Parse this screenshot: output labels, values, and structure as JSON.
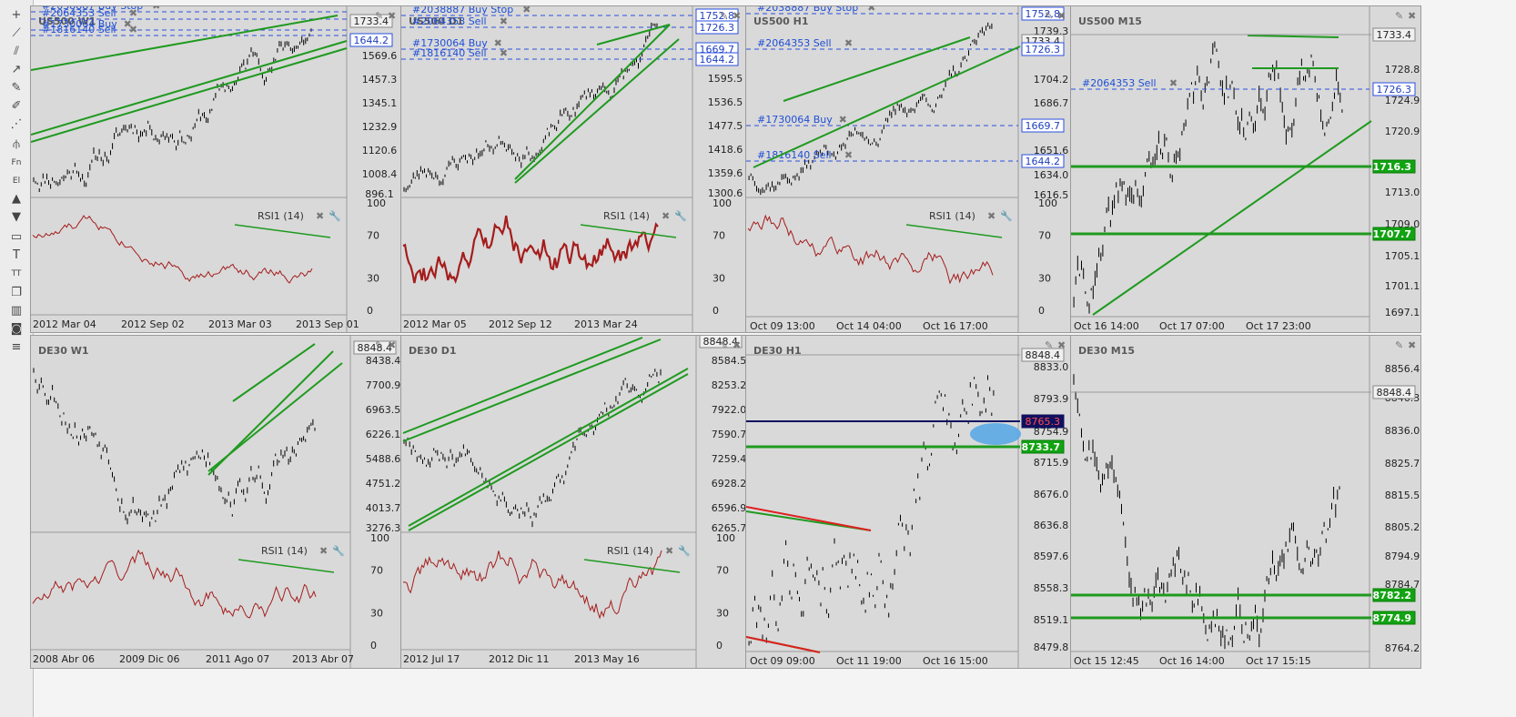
{
  "toolbar": {
    "icons": [
      {
        "name": "crosshair-icon",
        "glyph": "+"
      },
      {
        "name": "trendline-icon",
        "glyph": "⟋"
      },
      {
        "name": "channel-icon",
        "glyph": "⫽"
      },
      {
        "name": "ray-icon",
        "glyph": "↗"
      },
      {
        "name": "pencil-icon",
        "glyph": "✎"
      },
      {
        "name": "brush-icon",
        "glyph": "✐"
      },
      {
        "name": "fibonacci-icon",
        "glyph": "⋰"
      },
      {
        "name": "pitchfork-icon",
        "glyph": "⫛"
      },
      {
        "name": "fibonacci-fan-icon",
        "glyph": "Fn"
      },
      {
        "name": "elliott-icon",
        "glyph": "El"
      },
      {
        "name": "arrow-up-icon",
        "glyph": "▲"
      },
      {
        "name": "arrow-down-icon",
        "glyph": "▼"
      },
      {
        "name": "rectangle-icon",
        "glyph": "▭"
      },
      {
        "name": "text-icon",
        "glyph": "T"
      },
      {
        "name": "text-size-icon",
        "glyph": "TT"
      },
      {
        "name": "layers-icon",
        "glyph": "❐"
      },
      {
        "name": "bars-icon",
        "glyph": "▥"
      },
      {
        "name": "camera-icon",
        "glyph": "◙"
      },
      {
        "name": "menu-icon",
        "glyph": "≡"
      }
    ]
  },
  "colors": {
    "panel_bg": "#d9d9d9",
    "price": "#000000",
    "rsi": "#a51c1c",
    "trend": "#1f9a1f",
    "order": "#2a4fe0"
  },
  "panels": [
    {
      "id": "us500-w1",
      "title": "US500 W1",
      "symbol": "US500",
      "timeframe": "W1",
      "price_axis": [
        "1733.4",
        "1644.2",
        "1569.6",
        "1457.3",
        "1345.1",
        "1232.9",
        "1120.6",
        "1008.4",
        "896.1"
      ],
      "highlight_labels": [
        {
          "text": "1733.4",
          "style": "gray"
        },
        {
          "text": "1644.2",
          "style": "blue"
        }
      ],
      "orders": [
        "#2038887 Buy Stop",
        "#2064353 Sell",
        "#1730064 Buy",
        "#1816140 Sell"
      ],
      "rsi": {
        "label": "RSI1 (14)",
        "levels": [
          "100",
          "70",
          "30",
          "0"
        ]
      },
      "dates": [
        "2012 Mar 04",
        "2012 Sep 02",
        "2013 Mar 03",
        "2013 Sep 01"
      ]
    },
    {
      "id": "us500-d1",
      "title": "US500 D1",
      "symbol": "US500",
      "timeframe": "D1",
      "price_axis": [
        "1752.8",
        "1726.3",
        "1669.7",
        "1644.2",
        "1595.5",
        "1536.5",
        "1477.5",
        "1418.6",
        "1359.6",
        "1300.6"
      ],
      "highlight_labels": [
        {
          "text": "1752.8",
          "style": "blue"
        },
        {
          "text": "1726.3",
          "style": "blue"
        },
        {
          "text": "1669.7",
          "style": "blue"
        },
        {
          "text": "1644.2",
          "style": "blue"
        }
      ],
      "orders": [
        "#2038887 Buy Stop",
        "#2064353 Sell",
        "#1730064 Buy",
        "#1816140 Sell"
      ],
      "rsi": {
        "label": "RSI1 (14)",
        "levels": [
          "100",
          "70",
          "30",
          "0"
        ]
      },
      "dates": [
        "2012 Mar 05",
        "2012 Sep 12",
        "2013 Mar 24"
      ]
    },
    {
      "id": "us500-h1",
      "title": "US500 H1",
      "symbol": "US500",
      "timeframe": "H1",
      "price_axis": [
        "1752.8",
        "1739.3",
        "1733.4",
        "1726.3",
        "1704.2",
        "1686.7",
        "1669.7",
        "1651.6",
        "1644.2",
        "1634.0",
        "1616.5"
      ],
      "highlight_labels": [
        {
          "text": "1752.8",
          "style": "blue"
        },
        {
          "text": "1733.4",
          "style": "gray"
        },
        {
          "text": "1726.3",
          "style": "blue"
        },
        {
          "text": "1669.7",
          "style": "blue"
        },
        {
          "text": "1644.2",
          "style": "blue"
        }
      ],
      "orders": [
        "#2038887 Buy Stop",
        "#2064353 Sell",
        "#1730064 Buy",
        "#1816140 Sell"
      ],
      "rsi": {
        "label": "RSI1 (14)",
        "levels": [
          "100",
          "70",
          "30",
          "0"
        ]
      },
      "dates": [
        "Oct 09 13:00",
        "Oct 14 04:00",
        "Oct 16 17:00"
      ]
    },
    {
      "id": "us500-m15",
      "title": "US500 M15",
      "symbol": "US500",
      "timeframe": "M15",
      "price_axis": [
        "1733.4",
        "1728.8",
        "1726.3",
        "1724.9",
        "1720.9",
        "1716.3",
        "1713.0",
        "1709.0",
        "1707.7",
        "1705.1",
        "1701.1",
        "1697.1"
      ],
      "highlight_labels": [
        {
          "text": "1733.4",
          "style": "gray"
        },
        {
          "text": "1726.3",
          "style": "blue"
        },
        {
          "text": "1716.3",
          "style": "green"
        },
        {
          "text": "1707.7",
          "style": "green"
        }
      ],
      "orders": [
        "#2064353 Sell"
      ],
      "dates": [
        "Oct 16 14:00",
        "Oct 17 07:00",
        "Oct 17 23:00"
      ]
    },
    {
      "id": "de30-w1",
      "title": "DE30 W1",
      "symbol": "DE30",
      "timeframe": "W1",
      "price_axis": [
        "8848.4",
        "8438.4",
        "7700.9",
        "6963.5",
        "6226.1",
        "5488.6",
        "4751.2",
        "4013.7",
        "3276.3"
      ],
      "highlight_labels": [
        {
          "text": "8848.4",
          "style": "gray"
        }
      ],
      "orders": [],
      "rsi": {
        "label": "RSI1 (14)",
        "levels": [
          "100",
          "70",
          "30",
          "0"
        ]
      },
      "dates": [
        "2008 Abr 06",
        "2009 Dic 06",
        "2011 Ago 07",
        "2013 Abr 07"
      ]
    },
    {
      "id": "de30-d1",
      "title": "DE30 D1",
      "symbol": "DE30",
      "timeframe": "D1",
      "price_axis": [
        "8848.4",
        "8584.5",
        "8253.2",
        "7922.0",
        "7590.7",
        "7259.4",
        "6928.2",
        "6596.9",
        "6265.7"
      ],
      "highlight_labels": [
        {
          "text": "8848.4",
          "style": "gray"
        }
      ],
      "orders": [],
      "rsi": {
        "label": "RSI1 (14)",
        "levels": [
          "100",
          "70",
          "30",
          "0"
        ]
      },
      "dates": [
        "2012 Jul 17",
        "2012 Dic 11",
        "2013 May 16"
      ]
    },
    {
      "id": "de30-h1",
      "title": "DE30 H1",
      "symbol": "DE30",
      "timeframe": "H1",
      "price_axis": [
        "8848.4",
        "8833.0",
        "8793.9",
        "8765.3",
        "8754.9",
        "8733.7",
        "8715.9",
        "8676.0",
        "8636.8",
        "8597.6",
        "8558.3",
        "8519.1",
        "8479.8"
      ],
      "highlight_labels": [
        {
          "text": "8848.4",
          "style": "gray"
        },
        {
          "text": "8765.3",
          "style": "navy"
        },
        {
          "text": "8733.7",
          "style": "green"
        }
      ],
      "orders": [],
      "dates": [
        "Oct 09 09:00",
        "Oct 11 19:00",
        "Oct 16 15:00"
      ]
    },
    {
      "id": "de30-m15",
      "title": "DE30 M15",
      "symbol": "DE30",
      "timeframe": "M15",
      "price_axis": [
        "8856.4",
        "8848.4",
        "8846.3",
        "8836.0",
        "8825.7",
        "8815.5",
        "8805.2",
        "8794.9",
        "8784.7",
        "8782.2",
        "8774.9",
        "8764.2"
      ],
      "highlight_labels": [
        {
          "text": "8848.4",
          "style": "gray"
        },
        {
          "text": "8782.2",
          "style": "green"
        },
        {
          "text": "8774.9",
          "style": "green"
        }
      ],
      "orders": [],
      "dates": [
        "Oct 15 12:45",
        "Oct 16 14:00",
        "Oct 17 15:15"
      ]
    }
  ]
}
